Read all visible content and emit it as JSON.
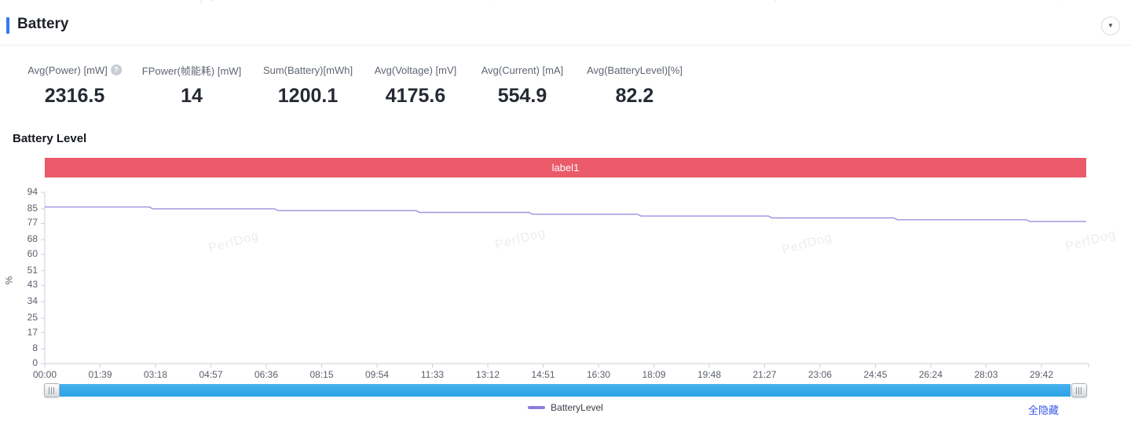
{
  "panel": {
    "title": "Battery",
    "collapse_icon": "▼"
  },
  "stats": [
    {
      "label": "Avg(Power) [mW]",
      "value": "2316.5",
      "has_help_icon": true
    },
    {
      "label": "FPower(帧能耗) [mW]",
      "value": "14",
      "has_help_icon": false
    },
    {
      "label": "Sum(Battery)[mWh]",
      "value": "1200.1",
      "has_help_icon": false
    },
    {
      "label": "Avg(Voltage) [mV]",
      "value": "4175.6",
      "has_help_icon": false
    },
    {
      "label": "Avg(Current) [mA]",
      "value": "554.9",
      "has_help_icon": false
    },
    {
      "label": "Avg(BatteryLevel)[%]",
      "value": "82.2",
      "has_help_icon": false
    }
  ],
  "chart": {
    "title": "Battery Level",
    "banner_label": "label1",
    "banner_color": "#ea5a69",
    "hide_all_label": "全隐藏",
    "hide_all_color": "#3a57e8",
    "watermark_text": "PerfDog",
    "scrollbar_color": "#35a9e9"
  },
  "chart_data": {
    "type": "line",
    "title": "Battery Level",
    "xlabel": "",
    "ylabel": "%",
    "ylim": [
      0,
      94
    ],
    "y_ticks": [
      0,
      8,
      17,
      25,
      34,
      43,
      51,
      60,
      68,
      77,
      85,
      94
    ],
    "x_tick_labels": [
      "00:00",
      "01:39",
      "03:18",
      "04:57",
      "06:36",
      "08:15",
      "09:54",
      "11:33",
      "13:12",
      "14:51",
      "16:30",
      "18:09",
      "19:48",
      "21:27",
      "23:06",
      "24:45",
      "26:24",
      "28:03",
      "29:42"
    ],
    "x_tick_interval_seconds": 99,
    "x_max_seconds": 1862,
    "grid": false,
    "legend_position": "bottom-center",
    "annotation": {
      "type": "markArea",
      "label": "label1"
    },
    "series": [
      {
        "name": "BatteryLevel",
        "color": "#8b7edb",
        "points_time_value": [
          [
            0,
            86
          ],
          [
            187,
            86
          ],
          [
            193,
            85
          ],
          [
            411,
            85
          ],
          [
            417,
            84
          ],
          [
            664,
            84
          ],
          [
            670,
            83
          ],
          [
            866,
            83
          ],
          [
            872,
            82
          ],
          [
            1060,
            82
          ],
          [
            1066,
            81
          ],
          [
            1294,
            81
          ],
          [
            1300,
            80
          ],
          [
            1518,
            80
          ],
          [
            1524,
            79
          ],
          [
            1755,
            79
          ],
          [
            1761,
            78
          ],
          [
            1862,
            78
          ]
        ]
      }
    ]
  }
}
